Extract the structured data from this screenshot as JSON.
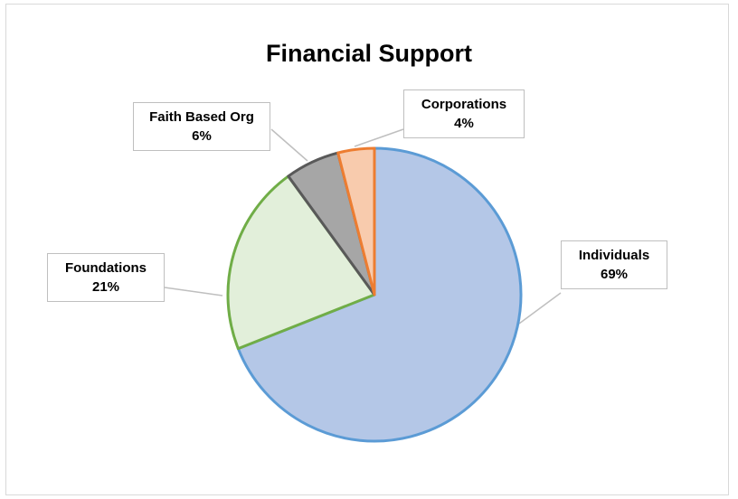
{
  "chart_data": {
    "type": "pie",
    "title": "Financial Support",
    "slices": [
      {
        "name": "Individuals",
        "value": 69,
        "label": "69%",
        "fill": "#b4c7e7",
        "stroke": "#5b9bd5"
      },
      {
        "name": "Foundations",
        "value": 21,
        "label": "21%",
        "fill": "#e2efda",
        "stroke": "#70ad47"
      },
      {
        "name": "Faith Based Org",
        "value": 6,
        "label": "6%",
        "fill": "#a6a6a6",
        "stroke": "#595959"
      },
      {
        "name": "Corporations",
        "value": 4,
        "label": "4%",
        "fill": "#f8cbad",
        "stroke": "#ed7d31"
      }
    ],
    "legend": "none"
  }
}
